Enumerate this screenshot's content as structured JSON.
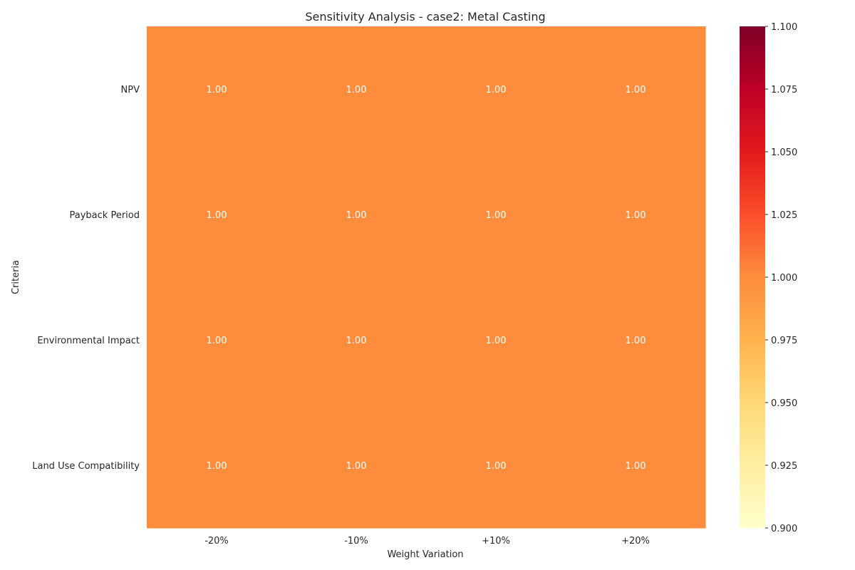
{
  "chart_data": {
    "type": "heatmap",
    "title": "Sensitivity Analysis - case2: Metal Casting",
    "xlabel": "Weight Variation",
    "ylabel": "Criteria",
    "x_categories": [
      "-20%",
      "-10%",
      "+10%",
      "+20%"
    ],
    "y_categories": [
      "NPV",
      "Payback Period",
      "Environmental Impact",
      "Land Use Compatibility"
    ],
    "values": [
      [
        1.0,
        1.0,
        1.0,
        1.0
      ],
      [
        1.0,
        1.0,
        1.0,
        1.0
      ],
      [
        1.0,
        1.0,
        1.0,
        1.0
      ],
      [
        1.0,
        1.0,
        1.0,
        1.0
      ]
    ],
    "value_format": "2 decimals",
    "colormap": "YlOrRd",
    "vmin": 0.9,
    "vmax": 1.1,
    "colorbar_ticks": [
      0.9,
      0.925,
      0.95,
      0.975,
      1.0,
      1.025,
      1.05,
      1.075,
      1.1
    ],
    "colorbar_tick_labels": [
      "0.900",
      "0.925",
      "0.950",
      "0.975",
      "1.000",
      "1.025",
      "1.050",
      "1.075",
      "1.100"
    ],
    "colorbar_stops": [
      "#ffffcc",
      "#ffeda0",
      "#fed976",
      "#feb24c",
      "#fd8d3c",
      "#fc4e2a",
      "#e31a1c",
      "#bd0026",
      "#800026"
    ],
    "cell_color": "#fd8d3c",
    "cell_text_color": "#ffffff",
    "grid": false,
    "legend": "colorbar-right"
  }
}
